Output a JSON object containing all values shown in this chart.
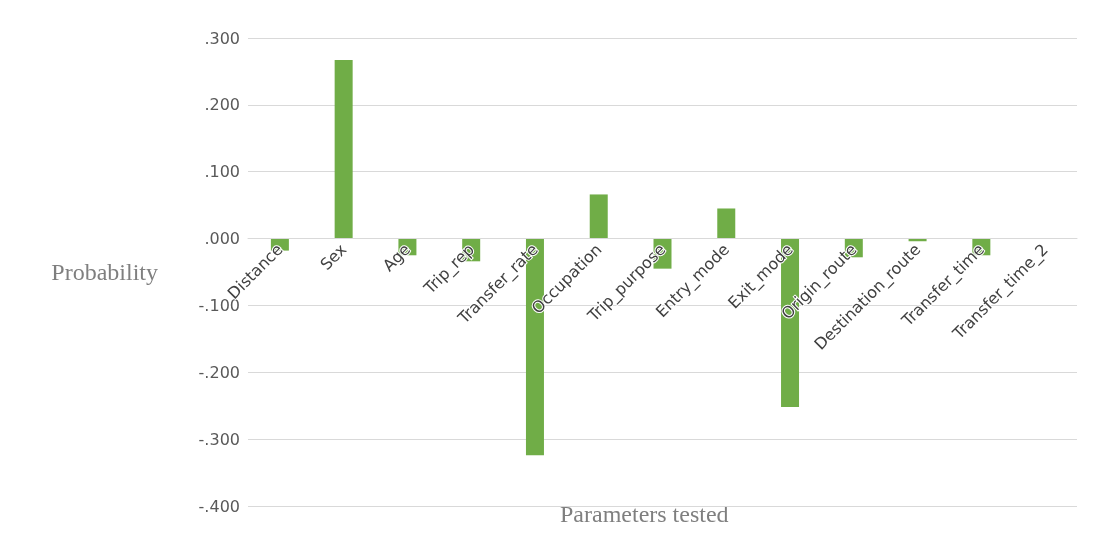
{
  "chart_data": {
    "type": "bar",
    "xlabel": "Parameters tested",
    "ylabel": "Probability",
    "categories": [
      "Distance",
      "Sex",
      "Age",
      "Trip_rep",
      "Transfer_rate",
      "Occupation",
      "Trip_purpose",
      "Entry_mode",
      "Exit_mode",
      "Origin_route",
      "Destination_route",
      "Transfer_time",
      "Transfer_time_2"
    ],
    "values": [
      -0.018,
      0.267,
      -0.025,
      -0.034,
      -0.324,
      0.066,
      -0.045,
      0.045,
      -0.252,
      -0.028,
      -0.004,
      -0.025,
      0
    ],
    "color": "#70ad47",
    "ylim": [
      -0.4,
      0.3
    ],
    "yticks": [
      {
        "value": -0.4,
        "label": "-.400"
      },
      {
        "value": -0.3,
        "label": "-.300"
      },
      {
        "value": -0.2,
        "label": "-.200"
      },
      {
        "value": -0.1,
        "label": "-.100"
      },
      {
        "value": 0,
        "label": ".000"
      },
      {
        "value": 0.1,
        "label": ".100"
      },
      {
        "value": 0.2,
        "label": ".200"
      },
      {
        "value": 0.3,
        "label": ".300"
      }
    ],
    "grid": "y"
  }
}
